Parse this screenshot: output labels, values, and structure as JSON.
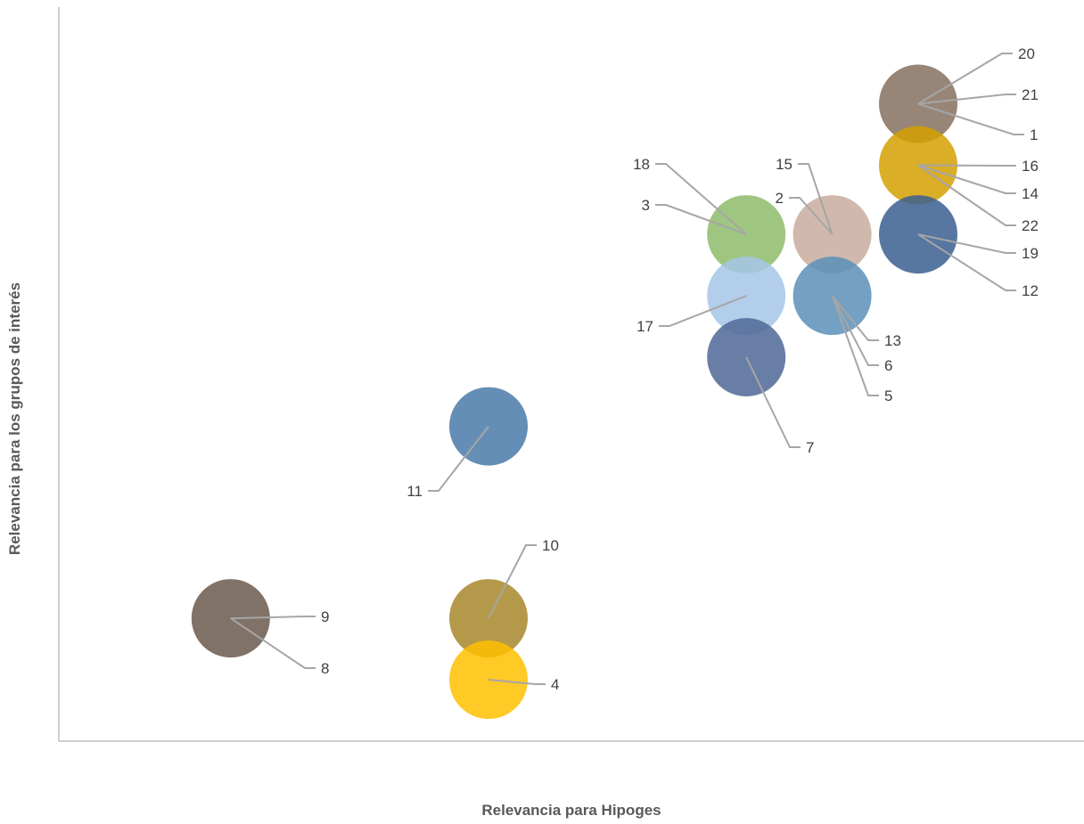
{
  "chart_data": {
    "type": "scatter",
    "title": "",
    "xlabel": "Relevancia para Hipoges",
    "ylabel": "Relevancia para los grupos de interés",
    "xlim": [
      0,
      10
    ],
    "ylim": [
      0,
      10
    ],
    "grid": false,
    "legend": "none",
    "axis_color": "#bfbfbf",
    "leader_color": "#a6a6a6",
    "bubbles": [
      {
        "x": 2,
        "y": 1.6,
        "color": "#6b594d",
        "labels": [
          "9",
          "8"
        ]
      },
      {
        "x": 5,
        "y": 1.6,
        "color": "#a8872a",
        "labels": [
          "10"
        ]
      },
      {
        "x": 5,
        "y": 0.8,
        "color": "#ffc000",
        "labels": [
          "4"
        ]
      },
      {
        "x": 5,
        "y": 4.1,
        "color": "#4a7aaa",
        "labels": [
          "11"
        ]
      },
      {
        "x": 8,
        "y": 6.6,
        "color": "#8ebc6b",
        "labels": [
          "18",
          "3"
        ]
      },
      {
        "x": 8,
        "y": 5.8,
        "color": "#a4c5e8",
        "labels": [
          "17"
        ]
      },
      {
        "x": 8,
        "y": 5.0,
        "color": "#4f6796",
        "labels": [
          "7"
        ]
      },
      {
        "x": 9,
        "y": 6.6,
        "color": "#c8ad9e",
        "labels": [
          "15",
          "2"
        ]
      },
      {
        "x": 9,
        "y": 5.8,
        "color": "#5b8fb8",
        "labels": [
          "13",
          "6",
          "5"
        ]
      },
      {
        "x": 10,
        "y": 8.3,
        "color": "#85705f",
        "labels": [
          "20",
          "21",
          "1"
        ]
      },
      {
        "x": 10,
        "y": 7.5,
        "color": "#d4a000",
        "labels": [
          "16",
          "14",
          "22"
        ]
      },
      {
        "x": 10,
        "y": 6.6,
        "color": "#3a5f8f",
        "labels": [
          "19",
          "12"
        ]
      }
    ]
  }
}
